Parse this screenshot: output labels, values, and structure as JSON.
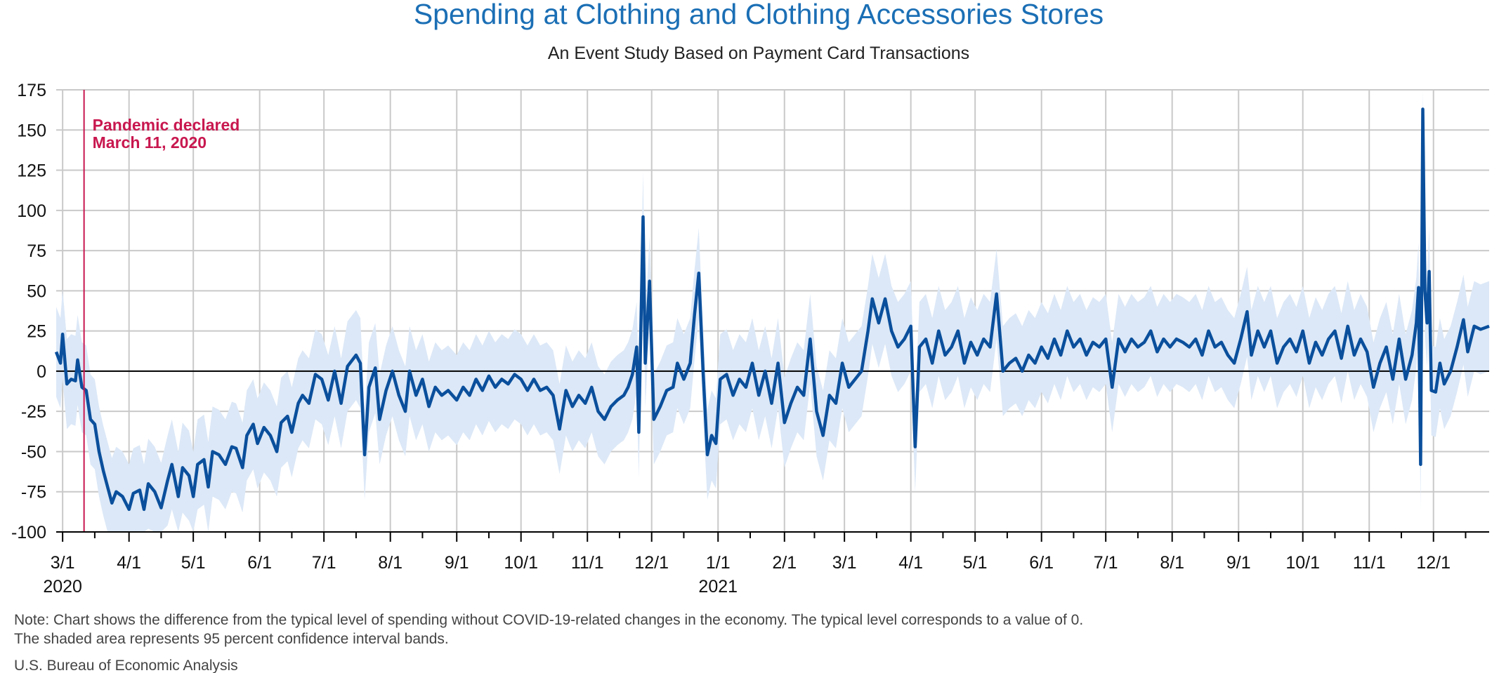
{
  "chart_data": {
    "type": "line",
    "title": "Spending at Clothing and Clothing Accessories Stores",
    "subtitle": "An Event Study Based on Payment Card Transactions",
    "xlabel": "",
    "ylabel": "",
    "ylim": [
      -100,
      175
    ],
    "yticks": [
      "175",
      "150",
      "125",
      "100",
      "75",
      "50",
      "25",
      "0",
      "-25",
      "-50",
      "-75",
      "-100"
    ],
    "ytick_values": [
      175,
      150,
      125,
      100,
      75,
      50,
      25,
      0,
      -25,
      -50,
      -75,
      -100
    ],
    "x_range": [
      "2020-02-27",
      "2021-12-27"
    ],
    "month_ticks": [
      {
        "date": "2020-03-01",
        "label": "3/1",
        "year_label": "2020"
      },
      {
        "date": "2020-04-01",
        "label": "4/1"
      },
      {
        "date": "2020-05-01",
        "label": "5/1"
      },
      {
        "date": "2020-06-01",
        "label": "6/1"
      },
      {
        "date": "2020-07-01",
        "label": "7/1"
      },
      {
        "date": "2020-08-01",
        "label": "8/1"
      },
      {
        "date": "2020-09-01",
        "label": "9/1"
      },
      {
        "date": "2020-10-01",
        "label": "10/1"
      },
      {
        "date": "2020-11-01",
        "label": "11/1"
      },
      {
        "date": "2020-12-01",
        "label": "12/1"
      },
      {
        "date": "2021-01-01",
        "label": "1/1",
        "year_label": "2021"
      },
      {
        "date": "2021-02-01",
        "label": "2/1"
      },
      {
        "date": "2021-03-01",
        "label": "3/1"
      },
      {
        "date": "2021-04-01",
        "label": "4/1"
      },
      {
        "date": "2021-05-01",
        "label": "5/1"
      },
      {
        "date": "2021-06-01",
        "label": "6/1"
      },
      {
        "date": "2021-07-01",
        "label": "7/1"
      },
      {
        "date": "2021-08-01",
        "label": "8/1"
      },
      {
        "date": "2021-09-01",
        "label": "9/1"
      },
      {
        "date": "2021-10-01",
        "label": "10/1"
      },
      {
        "date": "2021-11-01",
        "label": "11/1"
      },
      {
        "date": "2021-12-01",
        "label": "12/1"
      }
    ],
    "series": [
      {
        "color": "#0a4f9c",
        "points": [
          [
            "2020-02-27",
            12
          ],
          [
            "2020-02-29",
            5
          ],
          [
            "2020-03-01",
            23
          ],
          [
            "2020-03-03",
            -8
          ],
          [
            "2020-03-05",
            -5
          ],
          [
            "2020-03-07",
            -6
          ],
          [
            "2020-03-08",
            7
          ],
          [
            "2020-03-10",
            -10
          ],
          [
            "2020-03-12",
            -12
          ],
          [
            "2020-03-14",
            -30
          ],
          [
            "2020-03-16",
            -33
          ],
          [
            "2020-03-18",
            -50
          ],
          [
            "2020-03-20",
            -62
          ],
          [
            "2020-03-22",
            -72
          ],
          [
            "2020-03-24",
            -82
          ],
          [
            "2020-03-26",
            -75
          ],
          [
            "2020-03-29",
            -78
          ],
          [
            "2020-04-01",
            -86
          ],
          [
            "2020-04-03",
            -76
          ],
          [
            "2020-04-06",
            -74
          ],
          [
            "2020-04-08",
            -86
          ],
          [
            "2020-04-10",
            -70
          ],
          [
            "2020-04-13",
            -75
          ],
          [
            "2020-04-16",
            -85
          ],
          [
            "2020-04-19",
            -68
          ],
          [
            "2020-04-21",
            -58
          ],
          [
            "2020-04-24",
            -78
          ],
          [
            "2020-04-26",
            -60
          ],
          [
            "2020-04-29",
            -65
          ],
          [
            "2020-05-01",
            -78
          ],
          [
            "2020-05-03",
            -58
          ],
          [
            "2020-05-06",
            -55
          ],
          [
            "2020-05-08",
            -72
          ],
          [
            "2020-05-10",
            -50
          ],
          [
            "2020-05-13",
            -52
          ],
          [
            "2020-05-16",
            -58
          ],
          [
            "2020-05-19",
            -47
          ],
          [
            "2020-05-21",
            -48
          ],
          [
            "2020-05-24",
            -60
          ],
          [
            "2020-05-26",
            -40
          ],
          [
            "2020-05-29",
            -33
          ],
          [
            "2020-05-31",
            -45
          ],
          [
            "2020-06-03",
            -35
          ],
          [
            "2020-06-06",
            -40
          ],
          [
            "2020-06-09",
            -50
          ],
          [
            "2020-06-11",
            -32
          ],
          [
            "2020-06-14",
            -28
          ],
          [
            "2020-06-16",
            -38
          ],
          [
            "2020-06-19",
            -20
          ],
          [
            "2020-06-21",
            -15
          ],
          [
            "2020-06-24",
            -20
          ],
          [
            "2020-06-27",
            -2
          ],
          [
            "2020-06-30",
            -5
          ],
          [
            "2020-07-03",
            -18
          ],
          [
            "2020-07-06",
            0
          ],
          [
            "2020-07-09",
            -20
          ],
          [
            "2020-07-12",
            3
          ],
          [
            "2020-07-16",
            10
          ],
          [
            "2020-07-18",
            5
          ],
          [
            "2020-07-20",
            -52
          ],
          [
            "2020-07-22",
            -10
          ],
          [
            "2020-07-25",
            2
          ],
          [
            "2020-07-27",
            -30
          ],
          [
            "2020-07-30",
            -12
          ],
          [
            "2020-08-02",
            0
          ],
          [
            "2020-08-05",
            -15
          ],
          [
            "2020-08-08",
            -25
          ],
          [
            "2020-08-10",
            0
          ],
          [
            "2020-08-13",
            -15
          ],
          [
            "2020-08-16",
            -5
          ],
          [
            "2020-08-19",
            -22
          ],
          [
            "2020-08-22",
            -10
          ],
          [
            "2020-08-25",
            -15
          ],
          [
            "2020-08-28",
            -12
          ],
          [
            "2020-09-01",
            -18
          ],
          [
            "2020-09-04",
            -10
          ],
          [
            "2020-09-07",
            -15
          ],
          [
            "2020-09-10",
            -5
          ],
          [
            "2020-09-13",
            -12
          ],
          [
            "2020-09-16",
            -3
          ],
          [
            "2020-09-19",
            -10
          ],
          [
            "2020-09-22",
            -5
          ],
          [
            "2020-09-25",
            -8
          ],
          [
            "2020-09-28",
            -2
          ],
          [
            "2020-10-01",
            -5
          ],
          [
            "2020-10-04",
            -12
          ],
          [
            "2020-10-07",
            -5
          ],
          [
            "2020-10-10",
            -12
          ],
          [
            "2020-10-13",
            -10
          ],
          [
            "2020-10-16",
            -15
          ],
          [
            "2020-10-19",
            -36
          ],
          [
            "2020-10-22",
            -12
          ],
          [
            "2020-10-25",
            -22
          ],
          [
            "2020-10-28",
            -15
          ],
          [
            "2020-10-31",
            -20
          ],
          [
            "2020-11-03",
            -10
          ],
          [
            "2020-11-06",
            -25
          ],
          [
            "2020-11-09",
            -30
          ],
          [
            "2020-11-12",
            -22
          ],
          [
            "2020-11-15",
            -18
          ],
          [
            "2020-11-18",
            -15
          ],
          [
            "2020-11-20",
            -10
          ],
          [
            "2020-11-22",
            -2
          ],
          [
            "2020-11-24",
            15
          ],
          [
            "2020-11-25",
            -38
          ],
          [
            "2020-11-27",
            96
          ],
          [
            "2020-11-28",
            5
          ],
          [
            "2020-11-30",
            56
          ],
          [
            "2020-12-02",
            -30
          ],
          [
            "2020-12-05",
            -22
          ],
          [
            "2020-12-08",
            -12
          ],
          [
            "2020-12-11",
            -10
          ],
          [
            "2020-12-13",
            5
          ],
          [
            "2020-12-16",
            -5
          ],
          [
            "2020-12-19",
            5
          ],
          [
            "2020-12-21",
            35
          ],
          [
            "2020-12-23",
            61
          ],
          [
            "2020-12-25",
            0
          ],
          [
            "2020-12-27",
            -52
          ],
          [
            "2020-12-29",
            -40
          ],
          [
            "2020-12-31",
            -45
          ],
          [
            "2021-01-02",
            -5
          ],
          [
            "2021-01-05",
            -2
          ],
          [
            "2021-01-08",
            -15
          ],
          [
            "2021-01-11",
            -5
          ],
          [
            "2021-01-14",
            -10
          ],
          [
            "2021-01-17",
            5
          ],
          [
            "2021-01-20",
            -15
          ],
          [
            "2021-01-23",
            0
          ],
          [
            "2021-01-26",
            -20
          ],
          [
            "2021-01-29",
            5
          ],
          [
            "2021-02-01",
            -32
          ],
          [
            "2021-02-04",
            -20
          ],
          [
            "2021-02-07",
            -10
          ],
          [
            "2021-02-10",
            -15
          ],
          [
            "2021-02-13",
            20
          ],
          [
            "2021-02-16",
            -25
          ],
          [
            "2021-02-19",
            -40
          ],
          [
            "2021-02-22",
            -15
          ],
          [
            "2021-02-25",
            -20
          ],
          [
            "2021-02-28",
            5
          ],
          [
            "2021-03-03",
            -10
          ],
          [
            "2021-03-06",
            -5
          ],
          [
            "2021-03-09",
            0
          ],
          [
            "2021-03-12",
            25
          ],
          [
            "2021-03-14",
            45
          ],
          [
            "2021-03-17",
            30
          ],
          [
            "2021-03-20",
            45
          ],
          [
            "2021-03-23",
            25
          ],
          [
            "2021-03-26",
            15
          ],
          [
            "2021-03-29",
            20
          ],
          [
            "2021-04-01",
            28
          ],
          [
            "2021-04-03",
            -47
          ],
          [
            "2021-04-05",
            15
          ],
          [
            "2021-04-08",
            20
          ],
          [
            "2021-04-11",
            5
          ],
          [
            "2021-04-14",
            25
          ],
          [
            "2021-04-17",
            10
          ],
          [
            "2021-04-20",
            15
          ],
          [
            "2021-04-23",
            25
          ],
          [
            "2021-04-26",
            5
          ],
          [
            "2021-04-29",
            18
          ],
          [
            "2021-05-02",
            10
          ],
          [
            "2021-05-05",
            20
          ],
          [
            "2021-05-08",
            15
          ],
          [
            "2021-05-11",
            48
          ],
          [
            "2021-05-14",
            0
          ],
          [
            "2021-05-17",
            5
          ],
          [
            "2021-05-20",
            8
          ],
          [
            "2021-05-23",
            0
          ],
          [
            "2021-05-26",
            10
          ],
          [
            "2021-05-29",
            5
          ],
          [
            "2021-06-01",
            15
          ],
          [
            "2021-06-04",
            8
          ],
          [
            "2021-06-07",
            20
          ],
          [
            "2021-06-10",
            10
          ],
          [
            "2021-06-13",
            25
          ],
          [
            "2021-06-16",
            15
          ],
          [
            "2021-06-19",
            20
          ],
          [
            "2021-06-22",
            10
          ],
          [
            "2021-06-25",
            18
          ],
          [
            "2021-06-28",
            15
          ],
          [
            "2021-07-01",
            20
          ],
          [
            "2021-07-04",
            -10
          ],
          [
            "2021-07-07",
            20
          ],
          [
            "2021-07-10",
            12
          ],
          [
            "2021-07-13",
            20
          ],
          [
            "2021-07-16",
            15
          ],
          [
            "2021-07-19",
            18
          ],
          [
            "2021-07-22",
            25
          ],
          [
            "2021-07-25",
            12
          ],
          [
            "2021-07-28",
            20
          ],
          [
            "2021-07-31",
            15
          ],
          [
            "2021-08-03",
            20
          ],
          [
            "2021-08-06",
            18
          ],
          [
            "2021-08-09",
            15
          ],
          [
            "2021-08-12",
            20
          ],
          [
            "2021-08-15",
            10
          ],
          [
            "2021-08-18",
            25
          ],
          [
            "2021-08-21",
            15
          ],
          [
            "2021-08-24",
            18
          ],
          [
            "2021-08-27",
            10
          ],
          [
            "2021-08-30",
            5
          ],
          [
            "2021-09-02",
            20
          ],
          [
            "2021-09-05",
            37
          ],
          [
            "2021-09-07",
            10
          ],
          [
            "2021-09-10",
            25
          ],
          [
            "2021-09-13",
            15
          ],
          [
            "2021-09-16",
            25
          ],
          [
            "2021-09-19",
            5
          ],
          [
            "2021-09-22",
            15
          ],
          [
            "2021-09-25",
            20
          ],
          [
            "2021-09-28",
            12
          ],
          [
            "2021-10-01",
            25
          ],
          [
            "2021-10-04",
            5
          ],
          [
            "2021-10-07",
            18
          ],
          [
            "2021-10-10",
            10
          ],
          [
            "2021-10-13",
            20
          ],
          [
            "2021-10-16",
            25
          ],
          [
            "2021-10-19",
            8
          ],
          [
            "2021-10-22",
            28
          ],
          [
            "2021-10-25",
            10
          ],
          [
            "2021-10-28",
            20
          ],
          [
            "2021-10-31",
            12
          ],
          [
            "2021-11-03",
            -10
          ],
          [
            "2021-11-06",
            5
          ],
          [
            "2021-11-09",
            15
          ],
          [
            "2021-11-12",
            -5
          ],
          [
            "2021-11-15",
            20
          ],
          [
            "2021-11-18",
            -5
          ],
          [
            "2021-11-21",
            10
          ],
          [
            "2021-11-23",
            30
          ],
          [
            "2021-11-24",
            52
          ],
          [
            "2021-11-25",
            -58
          ],
          [
            "2021-11-26",
            163
          ],
          [
            "2021-11-27",
            50
          ],
          [
            "2021-11-28",
            30
          ],
          [
            "2021-11-29",
            62
          ],
          [
            "2021-11-30",
            -12
          ],
          [
            "2021-12-02",
            -13
          ],
          [
            "2021-12-04",
            5
          ],
          [
            "2021-12-06",
            -8
          ],
          [
            "2021-12-09",
            0
          ],
          [
            "2021-12-12",
            15
          ],
          [
            "2021-12-15",
            32
          ],
          [
            "2021-12-17",
            12
          ],
          [
            "2021-12-20",
            28
          ],
          [
            "2021-12-23",
            26
          ],
          [
            "2021-12-27",
            28
          ]
        ]
      }
    ],
    "band_halfwidth": 28,
    "band_color": "#dce8f7",
    "zero_line_color": "#000000",
    "grid": true,
    "grid_color": "#c9c9c9",
    "event": {
      "date": "2020-03-11",
      "label_line1": "Pandemic declared",
      "label_line2": "March 11, 2020",
      "color": "#c8174f"
    },
    "note_line1": "Note: Chart shows the difference from the typical level of spending without COVID-19-related changes in the economy. The typical level corresponds to a value of 0.",
    "note_line2": "The shaded area represents 95 percent confidence interval bands.",
    "source": "U.S. Bureau of Economic Analysis",
    "title_color": "#1b6fb5"
  }
}
